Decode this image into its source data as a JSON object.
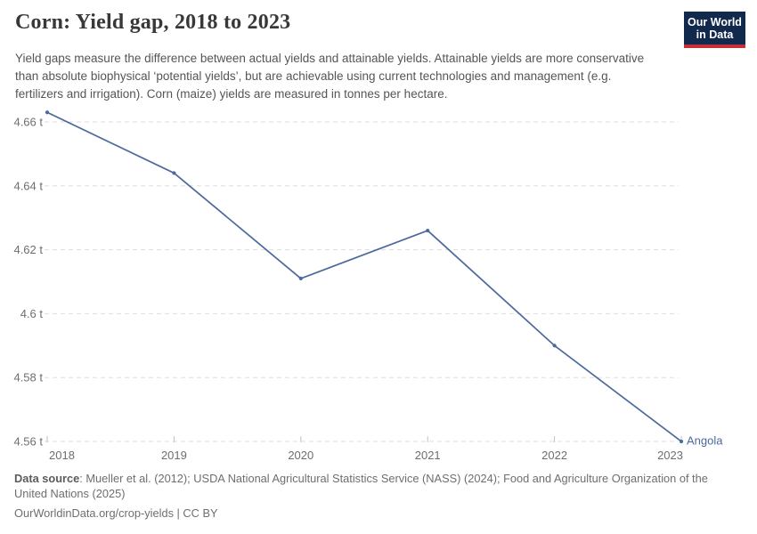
{
  "header": {
    "title": "Corn: Yield gap, 2018 to 2023",
    "subtitle": "Yield gaps measure the difference between actual yields and attainable yields. Attainable yields are more conservative than absolute biophysical ‘potential yields’, but are achievable using current technologies and management (e.g. fertilizers and irrigation). Corn (maize) yields are measured in tonnes per hectare."
  },
  "logo": {
    "line1": "Our World",
    "line2": "in Data",
    "bg_color": "#12294e",
    "accent_color": "#c72f38"
  },
  "chart_data": {
    "type": "line",
    "title": "Corn: Yield gap, 2018 to 2023",
    "x": [
      2018,
      2019,
      2020,
      2021,
      2022,
      2023
    ],
    "series": [
      {
        "name": "Angola",
        "color": "#4C6A9C",
        "values": [
          4.663,
          4.644,
          4.611,
          4.626,
          4.59,
          4.56
        ]
      }
    ],
    "unit": "tonnes per hectare",
    "ylabel": "",
    "xlabel": "",
    "ylim": [
      4.56,
      4.66
    ],
    "yticks": [
      4.56,
      4.58,
      4.6,
      4.62,
      4.64,
      4.66
    ],
    "ytick_labels": [
      "4.56 t",
      "4.58 t",
      "4.6 t",
      "4.62 t",
      "4.64 t",
      "4.66 t"
    ],
    "grid": "horizontal-dashed",
    "legend_position": "end-of-line-label"
  },
  "footer": {
    "source_label": "Data source",
    "source_text": ": Mueller et al. (2012); USDA National Agricultural Statistics Service (NASS) (2024); Food and Agriculture Organization of the United Nations (2025)",
    "license": "OurWorldinData.org/crop-yields | CC BY"
  }
}
